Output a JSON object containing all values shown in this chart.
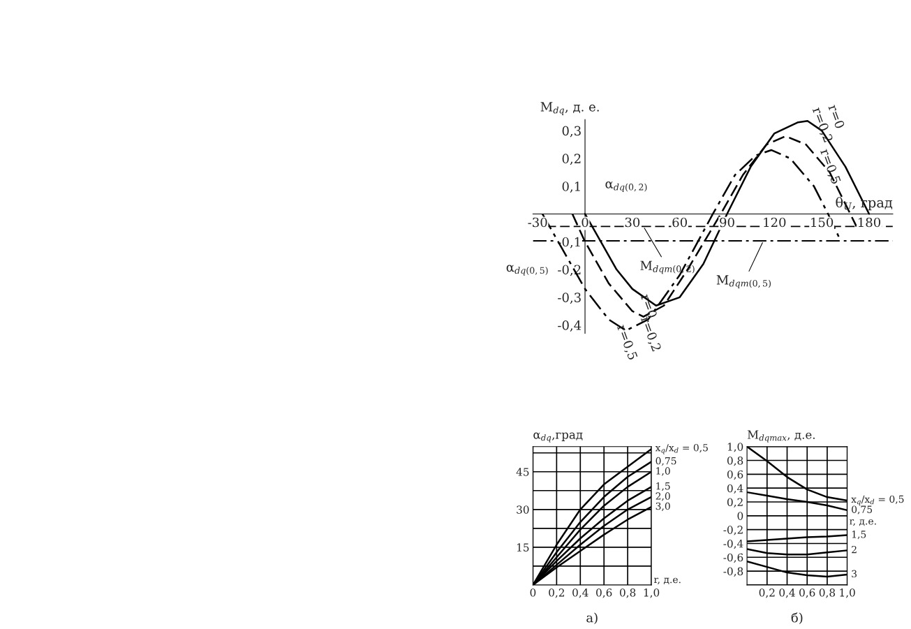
{
  "chart_data": [
    {
      "type": "line",
      "xlabel": "θ$_{U}$, град",
      "ylabel": "M$_{dq}$, д. е.",
      "xlim": [
        -33,
        195
      ],
      "ylim": [
        -0.43,
        0.34
      ],
      "xticks": [
        {
          "value": -30,
          "label": "-30"
        },
        0,
        30,
        60,
        90,
        120,
        150,
        180
      ],
      "yticks": [
        {
          "value": -0.4,
          "label": "-0,4"
        },
        {
          "value": -0.3,
          "label": "-0,3"
        },
        {
          "value": -0.2,
          "label": "-0,2"
        },
        {
          "value": -0.1,
          "label": "-0,1"
        },
        {
          "value": 0.1,
          "label": "0,1"
        },
        {
          "value": 0.2,
          "label": "0,2"
        },
        {
          "value": 0.3,
          "label": "0,3"
        }
      ],
      "series": [
        {
          "name": "r=0",
          "color": "#000000",
          "line_style": "solid",
          "x": [
            0,
            10,
            20,
            30,
            45,
            60,
            75,
            90,
            105,
            120,
            135,
            141,
            150,
            165,
            180
          ],
          "values": [
            0,
            -0.1,
            -0.2,
            -0.27,
            -0.33,
            -0.3,
            -0.18,
            0,
            0.17,
            0.29,
            0.33,
            0.335,
            0.3,
            0.17,
            0
          ]
        },
        {
          "name": "r=0,2",
          "color": "#000000",
          "line_style": "dashed",
          "x": [
            -8,
            0,
            15,
            30,
            37,
            50,
            65,
            86,
            100,
            115,
            127,
            140,
            155,
            172
          ],
          "values": [
            0,
            -0.1,
            -0.25,
            -0.35,
            -0.37,
            -0.33,
            -0.2,
            0,
            0.14,
            0.25,
            0.28,
            0.25,
            0.15,
            -0.045
          ]
        },
        {
          "name": "r=0,5",
          "color": "#000000",
          "line_style": "dashdot",
          "x": [
            -27,
            -15,
            0,
            15,
            26,
            40,
            60,
            81,
            95,
            108,
            118,
            130,
            145,
            154,
            162
          ],
          "values": [
            0,
            -0.12,
            -0.27,
            -0.38,
            -0.42,
            -0.38,
            -0.22,
            0,
            0.14,
            0.21,
            0.23,
            0.2,
            0.1,
            0,
            -0.097
          ]
        }
      ],
      "ref_lines": [
        {
          "axis": "y",
          "value": -0.045,
          "color": "#000000",
          "line_style": "dashed"
        },
        {
          "axis": "y",
          "value": -0.097,
          "color": "#000000",
          "line_style": "dashdot"
        }
      ],
      "annotations": [
        "α$_{dq(0,2)}$",
        {
          "text": "M$_{dqт(0,2)}$",
          "x": 37,
          "y": -0.045
        },
        {
          "text": "M$_{dqт(0,5)}$",
          "x": 113,
          "y": -0.097
        },
        "α$_{dq(0,5)}$"
      ]
    },
    {
      "type": "line",
      "xlabel": "r, д.е.",
      "ylabel": "α$_{dq}$,град",
      "xlim": [
        0,
        1.0
      ],
      "ylim": [
        0,
        55
      ],
      "grid": true,
      "xticks": [
        0,
        {
          "value": 0.2,
          "label": "0,2"
        },
        {
          "value": 0.4,
          "label": "0,4"
        },
        {
          "value": 0.6,
          "label": "0,6"
        },
        {
          "value": 0.8,
          "label": "0,8"
        },
        {
          "value": 1.0,
          "label": "1,0"
        }
      ],
      "yticks": [
        {
          "value": 7.5,
          "label": null
        },
        15,
        {
          "value": 22.5,
          "label": null
        },
        30,
        {
          "value": 37.5,
          "label": null
        },
        45,
        {
          "value": 52.5,
          "label": null
        }
      ],
      "series": [
        {
          "name": "x$_{q}$/x$_{d}$ = 0,5",
          "color": "#000000",
          "x": [
            0,
            0.2,
            0.4,
            0.6,
            0.8,
            1.0
          ],
          "values": [
            0,
            16,
            30,
            40,
            47,
            54
          ]
        },
        {
          "name": "0,75",
          "color": "#000000",
          "x": [
            0,
            0.2,
            0.4,
            0.6,
            0.8,
            1.0
          ],
          "values": [
            0,
            13,
            25,
            35,
            43,
            49
          ]
        },
        {
          "name": "1,0",
          "color": "#000000",
          "x": [
            0,
            0.2,
            0.4,
            0.6,
            0.8,
            1.0
          ],
          "values": [
            0,
            11,
            22,
            31.5,
            39,
            45
          ]
        },
        {
          "name": "1,5",
          "color": "#000000",
          "x": [
            0,
            0.2,
            0.4,
            0.6,
            0.8,
            1.0
          ],
          "values": [
            0,
            9.5,
            18.5,
            26.5,
            33.5,
            39
          ]
        },
        {
          "name": "2,0",
          "color": "#000000",
          "x": [
            0,
            0.2,
            0.4,
            0.6,
            0.8,
            1.0
          ],
          "values": [
            0,
            8,
            16,
            23.5,
            30,
            35
          ]
        },
        {
          "name": "3,0",
          "color": "#000000",
          "x": [
            0,
            0.2,
            0.4,
            0.6,
            0.8,
            1.0
          ],
          "values": [
            0,
            7,
            13.5,
            20,
            26,
            31
          ]
        }
      ],
      "annotations": [
        "а)"
      ]
    },
    {
      "type": "line",
      "xlabel": "r, д.е.",
      "ylabel": "M$_{dqmax}$, д.е.",
      "xlim": [
        0,
        1.0
      ],
      "ylim": [
        -1.0,
        1.0
      ],
      "grid": true,
      "xticks": [
        {
          "value": 0.2,
          "label": "0,2"
        },
        {
          "value": 0.4,
          "label": "0,4"
        },
        {
          "value": 0.6,
          "label": "0,6"
        },
        {
          "value": 0.8,
          "label": "0,8"
        },
        {
          "value": 1.0,
          "label": "1,0"
        }
      ],
      "yticks": [
        {
          "value": -1.0,
          "label": null
        },
        {
          "value": -0.8,
          "label": "-0,8"
        },
        {
          "value": -0.6,
          "label": "-0,6"
        },
        {
          "value": -0.4,
          "label": "-0,4"
        },
        {
          "value": -0.2,
          "label": "-0,2"
        },
        0,
        {
          "value": 0.2,
          "label": "0,2"
        },
        {
          "value": 0.4,
          "label": "0,4"
        },
        {
          "value": 0.6,
          "label": "0,6"
        },
        {
          "value": 0.8,
          "label": "0,8"
        },
        {
          "value": 1.0,
          "label": "1,0"
        }
      ],
      "series": [
        {
          "name": "x$_{q}$/x$_{d}$ = 0,5",
          "color": "#000000",
          "x": [
            0,
            0.2,
            0.4,
            0.6,
            0.8,
            1.0
          ],
          "values": [
            1.0,
            0.79,
            0.56,
            0.38,
            0.27,
            0.22
          ]
        },
        {
          "name": "0,75",
          "color": "#000000",
          "x": [
            0,
            0.2,
            0.4,
            0.6,
            0.8,
            1.0
          ],
          "values": [
            0.34,
            0.29,
            0.24,
            0.2,
            0.15,
            0.08
          ]
        },
        {
          "name": "1,5",
          "color": "#000000",
          "x": [
            0,
            0.2,
            0.4,
            0.6,
            0.8,
            1.0
          ],
          "values": [
            -0.37,
            -0.35,
            -0.33,
            -0.31,
            -0.3,
            -0.28
          ]
        },
        {
          "name": "2",
          "color": "#000000",
          "x": [
            0,
            0.2,
            0.4,
            0.6,
            0.8,
            1.0
          ],
          "values": [
            -0.48,
            -0.54,
            -0.56,
            -0.56,
            -0.53,
            -0.5
          ]
        },
        {
          "name": "3",
          "color": "#000000",
          "x": [
            0,
            0.2,
            0.4,
            0.6,
            0.8,
            1.0
          ],
          "values": [
            -0.66,
            -0.74,
            -0.82,
            -0.86,
            -0.88,
            -0.85
          ]
        }
      ],
      "annotations": [
        "б)"
      ]
    }
  ]
}
